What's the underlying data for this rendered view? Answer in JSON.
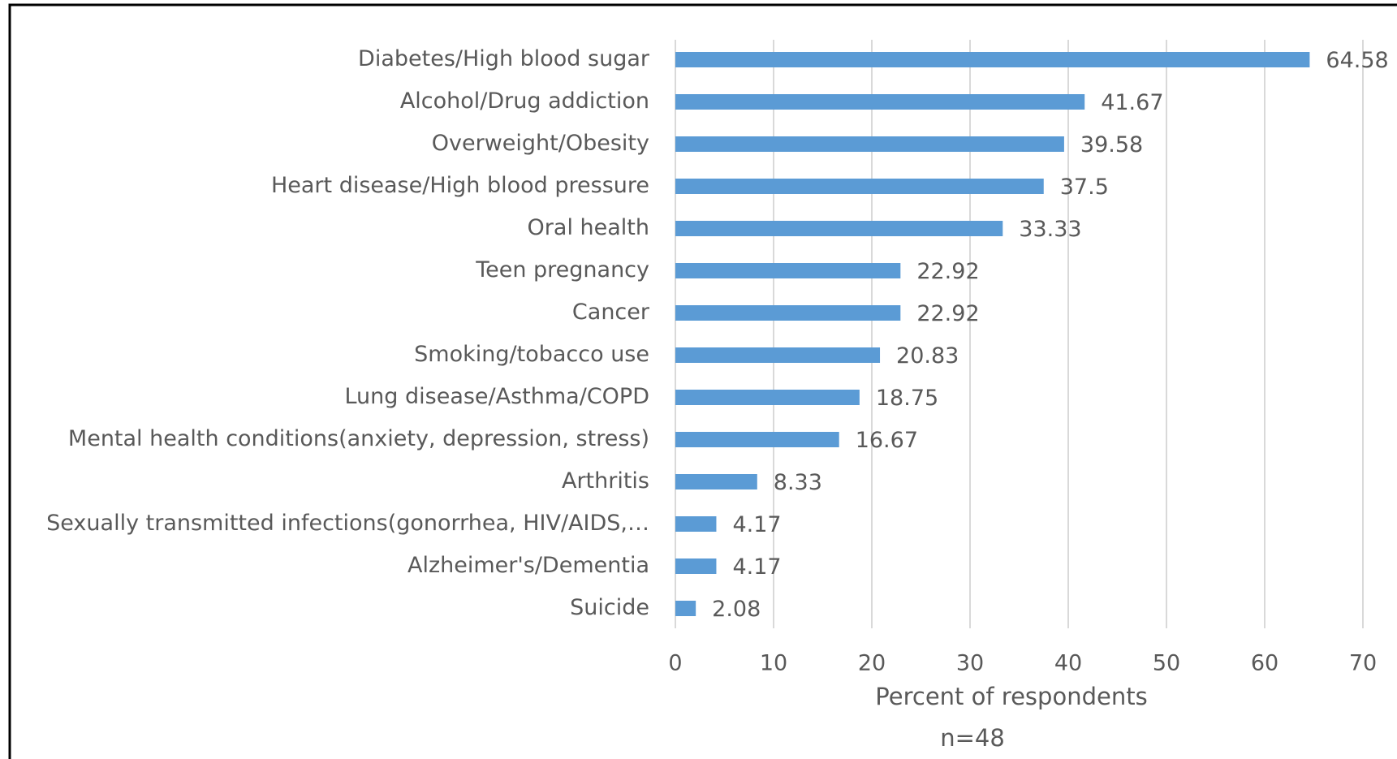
{
  "chart_data": {
    "type": "barh",
    "categories": [
      "Diabetes/High blood sugar",
      "Alcohol/Drug addiction",
      "Overweight/Obesity",
      "Heart disease/High blood pressure",
      "Oral health",
      "Teen pregnancy",
      "Cancer",
      "Smoking/tobacco use",
      "Lung disease/Asthma/COPD",
      "Mental health conditions(anxiety, depression, stress)",
      "Arthritis",
      "Sexually transmitted infections(gonorrhea, HIV/AIDS,…",
      "Alzheimer's/Dementia",
      "Suicide"
    ],
    "values": [
      64.58,
      41.67,
      39.58,
      37.5,
      33.33,
      22.92,
      22.92,
      20.83,
      18.75,
      16.67,
      8.33,
      4.17,
      4.17,
      2.08
    ],
    "color": "#5b9bd5",
    "xlim": [
      0,
      70
    ],
    "xticks": [
      0,
      10,
      20,
      30,
      40,
      50,
      60,
      70
    ],
    "grid": true,
    "x_label": "Percent of respondents",
    "annotation": "n=48"
  }
}
